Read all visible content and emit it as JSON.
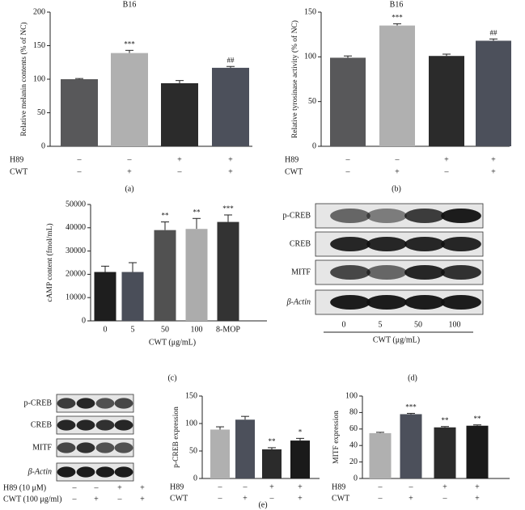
{
  "panel_labels": [
    "(a)",
    "(b)",
    "(c)",
    "(d)",
    "(e)"
  ],
  "chart_data": [
    {
      "type": "bar",
      "title": "B16",
      "y_label": "Relative melanin contents (% of NC)",
      "ylim": [
        0,
        200
      ],
      "yticks": [
        0,
        50,
        100,
        150,
        200
      ],
      "values": [
        100,
        139,
        94,
        117
      ],
      "errors": [
        1,
        4,
        4,
        2
      ],
      "colors": [
        "#58585a",
        "#b0b0b0",
        "#2b2b2b",
        "#4c505b"
      ],
      "annotations": [
        null,
        "***",
        null,
        "##"
      ],
      "treatments": [
        {
          "name": "H89",
          "values": [
            "–",
            "–",
            "+",
            "+"
          ]
        },
        {
          "name": "CWT",
          "values": [
            "–",
            "+",
            "–",
            "+"
          ]
        }
      ]
    },
    {
      "type": "bar",
      "title": "B16",
      "y_label": "Relative tyrosinase activity (% of NC)",
      "ylim": [
        0,
        150
      ],
      "yticks": [
        0,
        50,
        100,
        150
      ],
      "values": [
        99,
        135,
        101,
        118
      ],
      "errors": [
        2,
        2,
        2,
        2
      ],
      "colors": [
        "#58585a",
        "#b0b0b0",
        "#2b2b2b",
        "#4c505b"
      ],
      "annotations": [
        null,
        "***",
        null,
        "##"
      ],
      "treatments": [
        {
          "name": "H89",
          "values": [
            "–",
            "–",
            "+",
            "+"
          ]
        },
        {
          "name": "CWT",
          "values": [
            "–",
            "+",
            "–",
            "+"
          ]
        }
      ]
    },
    {
      "type": "bar",
      "y_label": "cAMP content (fmol/mL)",
      "x_label": "CWT (μg/mL)",
      "categories": [
        "0",
        "5",
        "50",
        "100",
        "8-MOP"
      ],
      "ylim": [
        0,
        50000
      ],
      "yticks": [
        0,
        10000,
        20000,
        30000,
        40000,
        50000
      ],
      "values": [
        21000,
        21000,
        39000,
        39500,
        42500
      ],
      "errors": [
        2500,
        4000,
        3500,
        4500,
        3000
      ],
      "colors": [
        "#1e1e1e",
        "#4a4e59",
        "#515151",
        "#acacac",
        "#333333"
      ],
      "annotations": [
        null,
        null,
        "**",
        "**",
        "***"
      ]
    },
    {
      "type": "bar",
      "y_label": "p-CREB expression",
      "ylim": [
        0,
        150
      ],
      "yticks": [
        0,
        50,
        100,
        150
      ],
      "values": [
        89,
        107,
        53,
        69
      ],
      "errors": [
        5,
        6,
        3,
        4
      ],
      "colors": [
        "#b0b0b0",
        "#4c505b",
        "#2b2b2b",
        "#1a1a1a"
      ],
      "annotations": [
        null,
        null,
        "**",
        "*"
      ],
      "treatments": [
        {
          "name": "H89",
          "values": [
            "–",
            "–",
            "+",
            "+"
          ]
        },
        {
          "name": "CWT",
          "values": [
            "–",
            "+",
            "–",
            "+"
          ]
        }
      ]
    },
    {
      "type": "bar",
      "y_label": "MITF expression",
      "ylim": [
        0,
        100
      ],
      "yticks": [
        0,
        20,
        40,
        60,
        80,
        100
      ],
      "values": [
        55,
        78,
        62,
        64
      ],
      "errors": [
        1,
        1,
        1,
        1
      ],
      "colors": [
        "#b0b0b0",
        "#4c505b",
        "#2b2b2b",
        "#1a1a1a"
      ],
      "annotations": [
        null,
        "***",
        "**",
        "**"
      ],
      "treatments": [
        {
          "name": "H89",
          "values": [
            "–",
            "–",
            "+",
            "+"
          ]
        },
        {
          "name": "CWT",
          "values": [
            "–",
            "+",
            "–",
            "+"
          ]
        }
      ]
    }
  ],
  "blots": [
    {
      "rows": [
        "p-CREB",
        "CREB",
        "MITF",
        "β-Actin"
      ],
      "lanes": [
        "0",
        "5",
        "50",
        "100"
      ],
      "x_label": "CWT (μg/mL)"
    },
    {
      "rows": [
        "p-CREB",
        "CREB",
        "MITF",
        "β-Actin"
      ],
      "treatments": [
        {
          "name": "H89 (10 μM)",
          "values": [
            "–",
            "–",
            "+",
            "+"
          ]
        },
        {
          "name": "CWT (100 μg/ml)",
          "values": [
            "–",
            "+",
            "–",
            "+"
          ]
        }
      ]
    }
  ]
}
